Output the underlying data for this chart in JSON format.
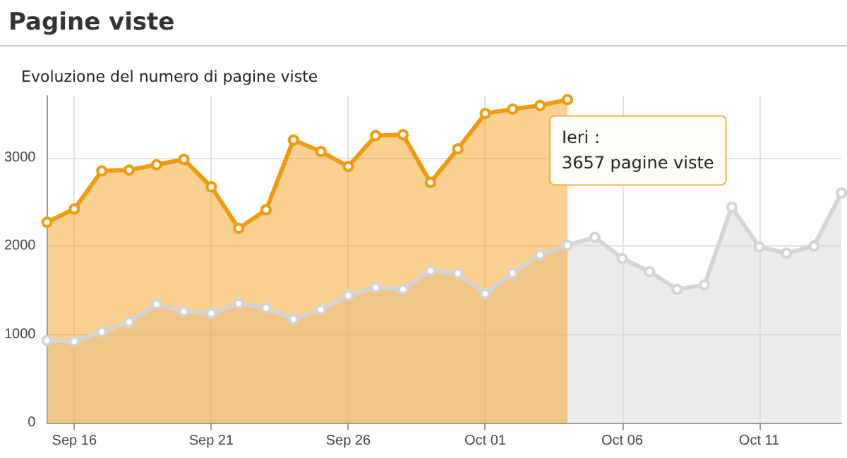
{
  "chart_data": {
    "type": "area",
    "title": "Pagine viste",
    "subtitle": "Evoluzione del numero di pagine viste",
    "x": [
      "--09-15",
      "--09-16",
      "--09-17",
      "--09-18",
      "--09-19",
      "--09-20",
      "--09-21",
      "--09-22",
      "--09-23",
      "--09-24",
      "--09-25",
      "--09-26",
      "--09-27",
      "--09-28",
      "--09-29",
      "--09-30",
      "--10-01",
      "--10-02",
      "--10-03",
      "--10-04",
      "--10-05",
      "--10-06",
      "--10-07",
      "--10-08",
      "--10-09",
      "--10-10",
      "--10-11",
      "--10-12",
      "--10-13",
      "--10-14"
    ],
    "series": [
      {
        "color": "#d4d4d4",
        "values": [
          930,
          920,
          1030,
          1140,
          1340,
          1260,
          1240,
          1350,
          1300,
          1170,
          1280,
          1440,
          1530,
          1510,
          1720,
          1690,
          1460,
          1690,
          1900,
          2010,
          2100,
          1860,
          1710,
          1510,
          1560,
          2440,
          1990,
          1920,
          2000,
          2600
        ]
      },
      {
        "color": "#f39a0c",
        "values": [
          2270,
          2420,
          2850,
          2860,
          2920,
          2980,
          2670,
          2200,
          2410,
          3200,
          3070,
          2900,
          3250,
          3260,
          2720,
          3100,
          3500,
          3550,
          3590,
          3657,
          null,
          null,
          null,
          null,
          null,
          null,
          null,
          null,
          null,
          null
        ]
      }
    ],
    "xlim": [
      "--09-15",
      "--10-14"
    ],
    "xticks": [
      {
        "value": "--09-16",
        "label": "Sep 16"
      },
      {
        "value": "--09-21",
        "label": "Sep 21"
      },
      {
        "value": "--09-26",
        "label": "Sep 26"
      },
      {
        "value": "--10-01",
        "label": "Oct 01"
      },
      {
        "value": "--10-06",
        "label": "Oct 06"
      },
      {
        "value": "--10-11",
        "label": "Oct 11"
      }
    ],
    "ylim": [
      0,
      3700
    ],
    "yticks": [
      0,
      1000,
      2000,
      3000
    ],
    "grid": true,
    "marker": "circle",
    "line_style": "solid",
    "annotations": [
      {
        "text": "Ieri :\n3657 pagine viste",
        "x": "--10-04",
        "y": 3657
      }
    ]
  }
}
